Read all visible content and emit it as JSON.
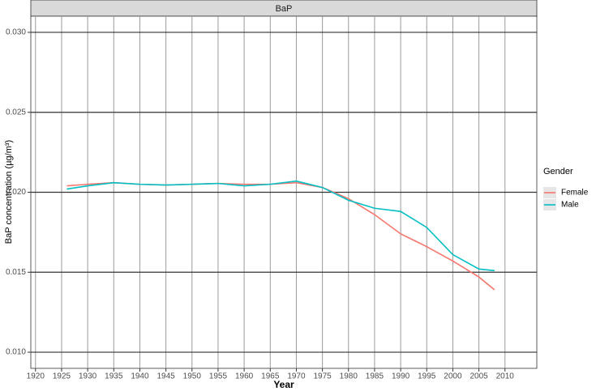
{
  "chart_data": {
    "type": "line",
    "title": "BaP",
    "x_label": "Year",
    "y_label": "BaP concentration (µg/m³)",
    "legend_title": "Gender",
    "legend_position": "right",
    "grid": true,
    "x": [
      1926,
      1930,
      1935,
      1940,
      1945,
      1950,
      1955,
      1960,
      1965,
      1970,
      1975,
      1980,
      1985,
      1990,
      1995,
      2000,
      2005,
      2008
    ],
    "series": [
      {
        "name": "Female",
        "color": "#F8766D",
        "values": [
          0.0204,
          0.0205,
          0.0206,
          0.0205,
          0.02045,
          0.0205,
          0.02055,
          0.0205,
          0.0205,
          0.0206,
          0.0203,
          0.0196,
          0.0186,
          0.0174,
          0.0166,
          0.0157,
          0.0147,
          0.0139
        ]
      },
      {
        "name": "Male",
        "color": "#00BFC4",
        "values": [
          0.0202,
          0.0204,
          0.0206,
          0.0205,
          0.02045,
          0.0205,
          0.02055,
          0.0204,
          0.0205,
          0.0207,
          0.0203,
          0.0195,
          0.019,
          0.0188,
          0.0178,
          0.0161,
          0.0152,
          0.0151
        ]
      }
    ],
    "xlim": [
      1919.1,
      2016.1
    ],
    "xticks": [
      1920,
      1925,
      1930,
      1935,
      1940,
      1945,
      1950,
      1955,
      1960,
      1965,
      1970,
      1975,
      1980,
      1985,
      1990,
      1995,
      2000,
      2005,
      2010
    ],
    "ylim": [
      0.00899,
      0.03101
    ],
    "yticks": [
      {
        "value": 0.01,
        "label": "0.010"
      },
      {
        "value": 0.015,
        "label": "0.015"
      },
      {
        "value": 0.02,
        "label": "0.020"
      },
      {
        "value": 0.025,
        "label": "0.025"
      },
      {
        "value": 0.03,
        "label": "0.030"
      }
    ]
  }
}
